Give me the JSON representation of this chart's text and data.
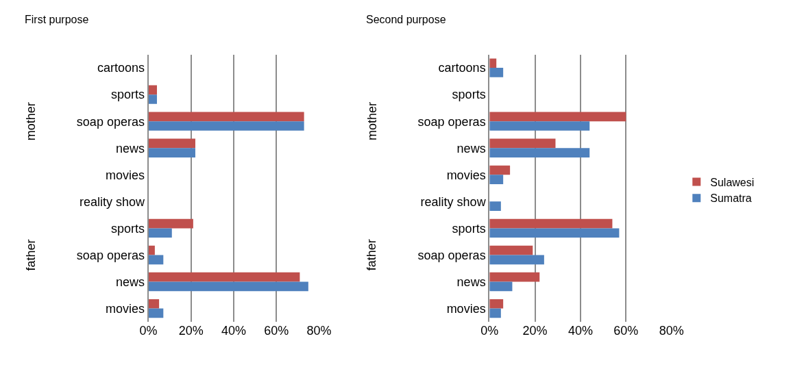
{
  "chart_data": [
    {
      "type": "bar",
      "orientation": "horizontal",
      "title": "First purpose",
      "categories": [
        "cartoons",
        "sports",
        "soap operas",
        "news",
        "movies",
        "reality show",
        "sports",
        "soap operas",
        "news",
        "movies"
      ],
      "annotations": [
        "mother",
        "father"
      ],
      "series": [
        {
          "color": "#c0504d",
          "values": [
            null,
            4,
            73,
            22,
            null,
            null,
            21,
            3,
            71,
            5
          ]
        },
        {
          "color": "#4f81bd",
          "values": [
            null,
            4,
            73,
            22,
            null,
            null,
            11,
            7,
            75,
            7
          ]
        }
      ],
      "xlim": [
        0,
        80
      ],
      "xticks": [
        {
          "value": 0,
          "label": "0%"
        },
        {
          "value": 20,
          "label": "20%"
        },
        {
          "value": 40,
          "label": "40%"
        },
        {
          "value": 60,
          "label": "60%"
        },
        {
          "value": 80,
          "label": "80%"
        }
      ],
      "grid": "x",
      "legend": false
    },
    {
      "type": "bar",
      "orientation": "horizontal",
      "title": "Second purpose",
      "categories": [
        "cartoons",
        "sports",
        "soap operas",
        "news",
        "movies",
        "reality show",
        "sports",
        "soap operas",
        "news",
        "movies"
      ],
      "annotations": [
        "mother",
        "father"
      ],
      "series": [
        {
          "name": "Sulawesi",
          "color": "#c0504d",
          "values": [
            3,
            null,
            60,
            29,
            9,
            null,
            54,
            19,
            22,
            6
          ]
        },
        {
          "name": "Sumatra",
          "color": "#4f81bd",
          "values": [
            6,
            null,
            44,
            44,
            6,
            5,
            57,
            24,
            10,
            5
          ]
        }
      ],
      "xlim": [
        0,
        80
      ],
      "xticks": [
        {
          "value": 0,
          "label": "0%"
        },
        {
          "value": 20,
          "label": "20%"
        },
        {
          "value": 40,
          "label": "40%"
        },
        {
          "value": 60,
          "label": "60%"
        },
        {
          "value": 80,
          "label": "80%"
        }
      ],
      "grid": "x",
      "legend": "right"
    }
  ]
}
